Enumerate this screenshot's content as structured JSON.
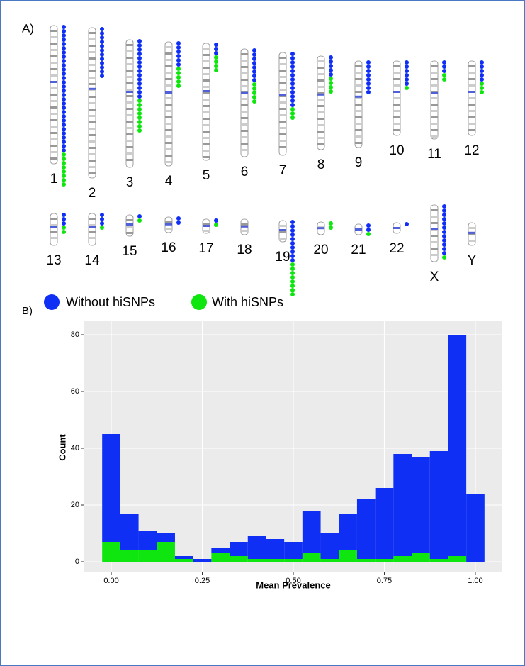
{
  "panel_a": {
    "label": "A)",
    "chromosomes": [
      {
        "name": "1",
        "without": 30,
        "with": 8
      },
      {
        "name": "2",
        "without": 12,
        "with": 0
      },
      {
        "name": "3",
        "without": 14,
        "with": 8
      },
      {
        "name": "4",
        "without": 6,
        "with": 5
      },
      {
        "name": "5",
        "without": 3,
        "with": 4
      },
      {
        "name": "6",
        "without": 8,
        "with": 5
      },
      {
        "name": "7",
        "without": 13,
        "with": 3
      },
      {
        "name": "8",
        "without": 5,
        "with": 4
      },
      {
        "name": "9",
        "without": 8,
        "with": 0
      },
      {
        "name": "10",
        "without": 6,
        "with": 1
      },
      {
        "name": "11",
        "without": 3,
        "with": 2
      },
      {
        "name": "12",
        "without": 5,
        "with": 3
      },
      {
        "name": "13",
        "without": 3,
        "with": 2
      },
      {
        "name": "14",
        "without": 3,
        "with": 1
      },
      {
        "name": "15",
        "without": 1,
        "with": 1
      },
      {
        "name": "16",
        "without": 2,
        "with": 0
      },
      {
        "name": "17",
        "without": 1,
        "with": 1
      },
      {
        "name": "18",
        "without": 0,
        "with": 0
      },
      {
        "name": "19",
        "without": 10,
        "with": 8
      },
      {
        "name": "20",
        "without": 0,
        "with": 2
      },
      {
        "name": "21",
        "without": 2,
        "with": 1
      },
      {
        "name": "22",
        "without": 1,
        "with": 0
      },
      {
        "name": "X",
        "without": 12,
        "with": 1
      },
      {
        "name": "Y",
        "without": 0,
        "with": 0
      }
    ]
  },
  "panel_b": {
    "label": "B)"
  },
  "chart_data": {
    "type": "histogram",
    "xlabel": "Mean Prevalence",
    "ylabel": "Count",
    "bins": [
      -0.025,
      0.025,
      0.075,
      0.125,
      0.175,
      0.225,
      0.275,
      0.325,
      0.375,
      0.425,
      0.475,
      0.525,
      0.575,
      0.625,
      0.675,
      0.725,
      0.775,
      0.825,
      0.875,
      0.925,
      0.975,
      1.025
    ],
    "series": [
      {
        "name": "Without hiSNPs",
        "color": "#0f2ff5",
        "values": [
          38,
          13,
          7,
          3,
          1,
          1,
          2,
          5,
          8,
          7,
          6,
          15,
          9,
          13,
          21,
          25,
          36,
          34,
          38,
          78,
          24
        ]
      },
      {
        "name": "With hiSNPs",
        "color": "#0fe60f",
        "values": [
          7,
          4,
          4,
          7,
          1,
          0,
          3,
          2,
          1,
          1,
          1,
          3,
          1,
          4,
          1,
          1,
          2,
          3,
          1,
          2,
          0
        ]
      }
    ],
    "stacked": true,
    "xlim": [
      -0.074,
      1.074
    ],
    "ylim": [
      -3.5,
      84.75
    ],
    "xticks": [
      {
        "value": 0,
        "label": "0.00"
      },
      {
        "value": 0.25,
        "label": "0.25"
      },
      {
        "value": 0.5,
        "label": "0.50"
      },
      {
        "value": 0.75,
        "label": "0.75"
      },
      {
        "value": 1,
        "label": "1.00"
      }
    ],
    "yticks": [
      0,
      20,
      40,
      60,
      80
    ],
    "grid": true
  }
}
